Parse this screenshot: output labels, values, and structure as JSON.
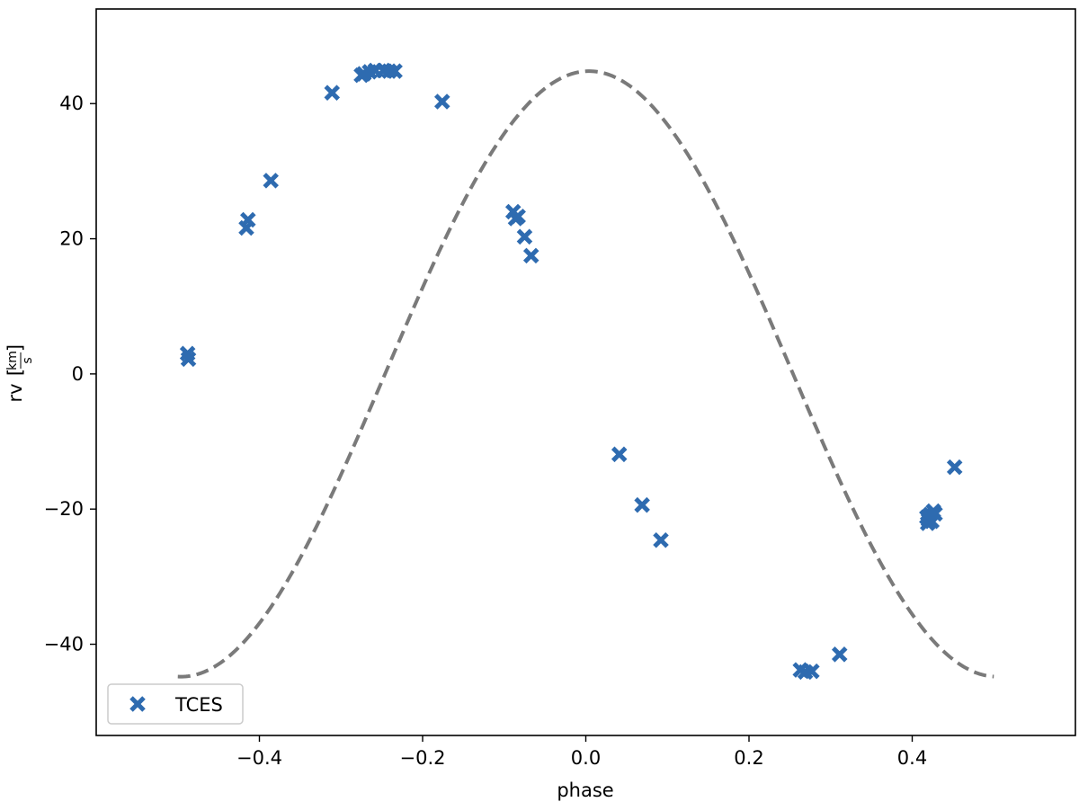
{
  "chart_data": {
    "type": "scatter",
    "title": "",
    "xlabel": "phase",
    "ylabel_prefix": "rv",
    "ylabel_unit_num": "km",
    "ylabel_unit_den": "s",
    "xlim": [
      -0.6,
      0.6
    ],
    "ylim": [
      -53.5,
      54
    ],
    "xticks": [
      -0.4,
      -0.2,
      0.0,
      0.2,
      0.4
    ],
    "xtick_labels": [
      "−0.4",
      "−0.2",
      "0.0",
      "0.2",
      "0.4"
    ],
    "yticks": [
      -40,
      -20,
      0,
      20,
      40
    ],
    "ytick_labels": [
      "−40",
      "−20",
      "0",
      "20",
      "40"
    ],
    "grid": false,
    "legend_position": "lower-left",
    "series": [
      {
        "name": "TCES",
        "marker": "x",
        "color": "#2e6bb0",
        "x": [
          -0.488,
          -0.487,
          -0.416,
          -0.414,
          -0.386,
          -0.311,
          -0.275,
          -0.272,
          -0.265,
          -0.258,
          -0.248,
          -0.241,
          -0.234,
          -0.176,
          -0.089,
          -0.086,
          -0.083,
          -0.075,
          -0.067,
          0.041,
          0.069,
          0.092,
          0.263,
          0.269,
          0.277,
          0.311,
          0.418,
          0.419,
          0.42,
          0.422,
          0.424,
          0.426,
          0.428,
          0.452
        ],
        "y": [
          3.0,
          2.2,
          21.6,
          22.8,
          28.6,
          41.6,
          44.2,
          44.4,
          44.7,
          44.9,
          44.9,
          44.8,
          44.8,
          40.3,
          24.0,
          23.0,
          23.3,
          20.3,
          17.5,
          -11.9,
          -19.4,
          -24.6,
          -43.8,
          -44.1,
          -44.0,
          -41.5,
          -21.2,
          -22.1,
          -21.6,
          -20.8,
          -21.8,
          -20.3,
          -20.7,
          -13.8
        ]
      }
    ],
    "model_curve": {
      "style": "dashed",
      "color": "#7a7a7a",
      "amplitude": 44.8,
      "phase_shift": 0.254,
      "x_range": [
        -0.5,
        0.5
      ]
    }
  }
}
